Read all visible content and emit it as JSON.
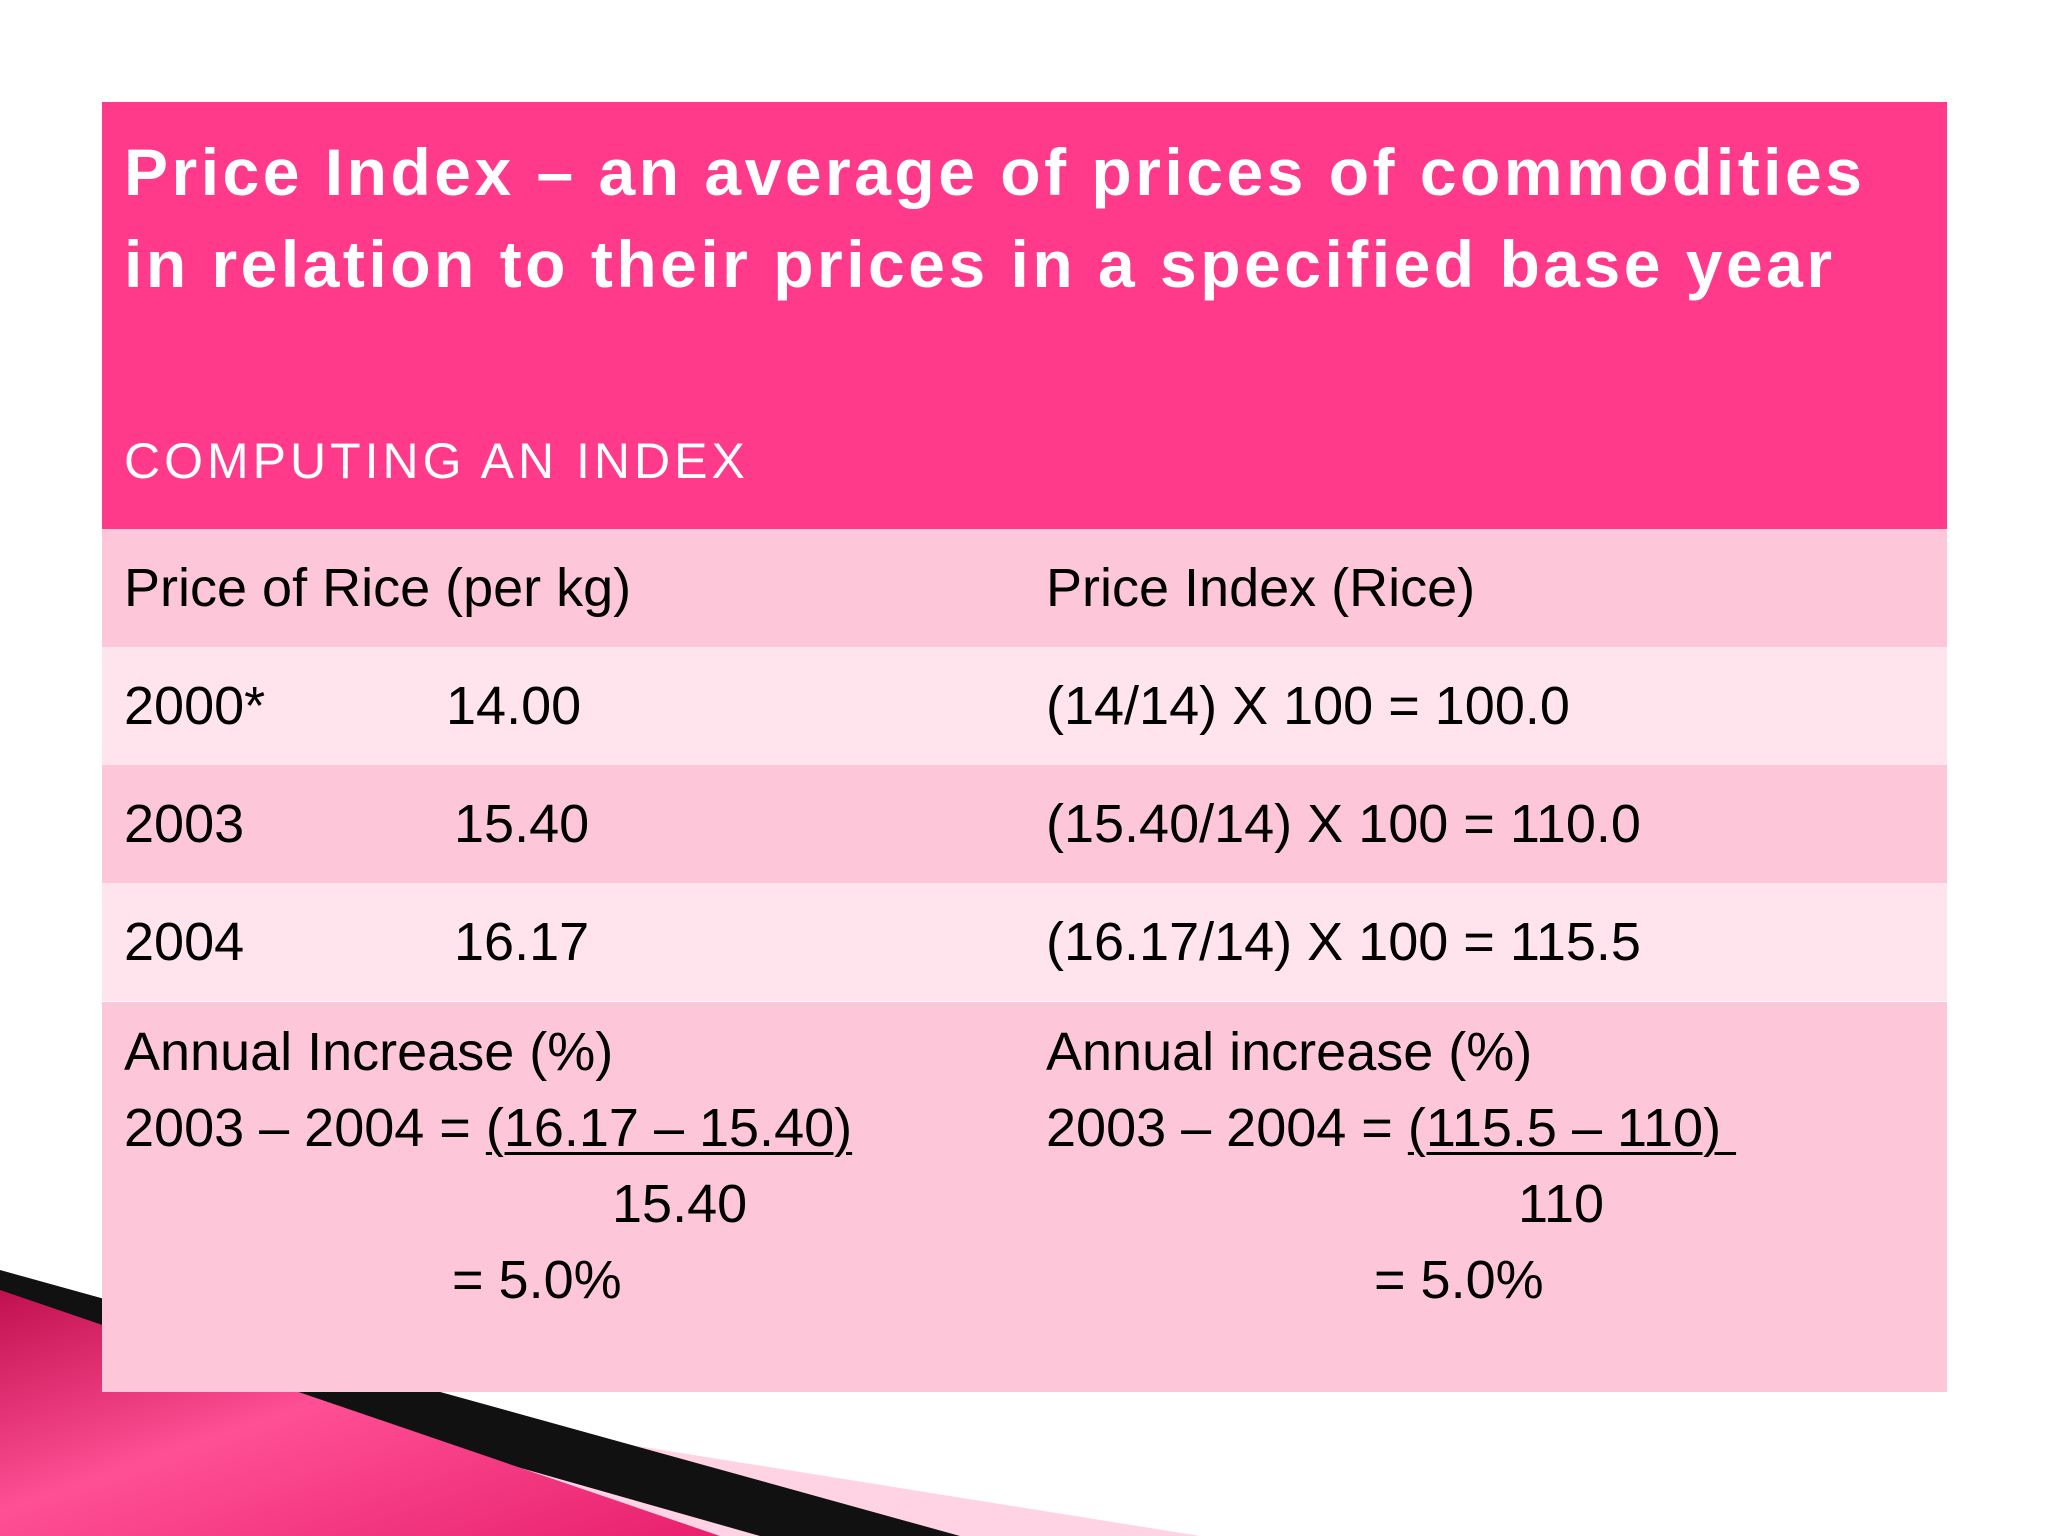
{
  "header": {
    "title": "Price Index – an average of prices of commodities in relation to their prices in a specified base year",
    "subtitle": "COMPUTING AN INDEX"
  },
  "table": {
    "headers": [
      "Price of Rice (per kg)",
      "Price Index (Rice)"
    ],
    "rows": [
      {
        "year": "2000*",
        "price": "14.00",
        "index": "(14/14) X 100 = 100.0"
      },
      {
        "year": "2003",
        "price": "15.40",
        "index": "(15.40/14) X 100 = 110.0"
      },
      {
        "year": "2004",
        "price": "16.17",
        "index": "(16.17/14) X 100 = 115.5"
      }
    ]
  },
  "calc_left": {
    "heading": "Annual Increase (%)",
    "prefix": "2003 – 2004 = ",
    "numerator": "(16.17 – 15.40)",
    "denominator": "15.40",
    "result": "= 5.0%"
  },
  "calc_right": {
    "heading": "Annual increase (%)",
    "prefix": "2003 – 2004 = ",
    "numerator": "(115.5 – 110) ",
    "denominator": "110",
    "result": "= 5.0%"
  },
  "colors": {
    "header": "#ff3a8a",
    "row_dark": "#fec7d9",
    "row_light": "#ffe4ed",
    "accent": "#e01f6a"
  }
}
